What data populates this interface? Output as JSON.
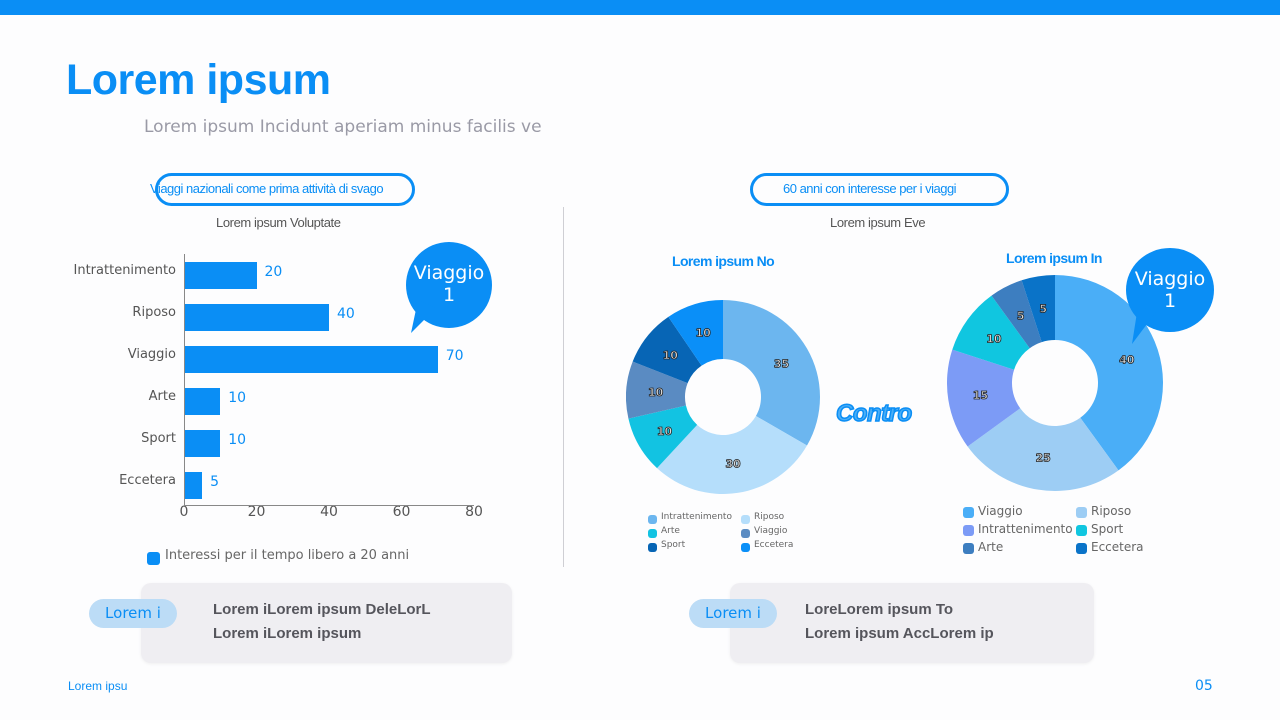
{
  "header": {
    "title": "Lorem ipsum",
    "subtitle": "Lorem ipsum Incidunt aperiam minus facilis ve"
  },
  "left_panel": {
    "pill_label": "Viaggi nazionali come prima attività di svago",
    "caption": "Lorem ipsum Voluptate",
    "bubble": {
      "line1": "Viaggio",
      "line2": "1"
    },
    "legend_label": "Interessi per il tempo libero a 20 anni",
    "card": {
      "tag": "Lorem i",
      "line1": "Lorem iLorem ipsum DeleLorL",
      "line2": "Lorem iLorem ipsum"
    }
  },
  "right_panel": {
    "pill_label": "60 anni con interesse per i viaggi",
    "caption": "Lorem ipsum Eve",
    "contro_label": "Contro",
    "bubble": {
      "line1": "Viaggio",
      "line2": "1"
    },
    "card": {
      "tag": "Lorem i",
      "line1": "LoreLorem ipsum To",
      "line2": "Lorem ipsum AccLorem ip"
    }
  },
  "footer": {
    "left_text": "Lorem ipsu",
    "page_number": "05"
  },
  "colors": {
    "accent": "#0a8ef5",
    "card_bg": "#efeef2",
    "tag_bg": "#bcdcf6"
  },
  "chart_data": [
    {
      "type": "bar",
      "orientation": "horizontal",
      "title": "Lorem ipsum Voluptate",
      "categories": [
        "Intrattenimento",
        "Riposo",
        "Viaggio",
        "Arte",
        "Sport",
        "Eccetera"
      ],
      "values": [
        20,
        40,
        70,
        10,
        10,
        5
      ],
      "series": [
        {
          "name": "Interessi per il tempo libero a 20 anni",
          "values": [
            20,
            40,
            70,
            10,
            10,
            5
          ],
          "color": "#0a8ef5"
        }
      ],
      "xticks": [
        "0",
        "20",
        "40",
        "60",
        "80"
      ],
      "xlim": [
        0,
        80
      ],
      "grid": false,
      "legend_position": "bottom",
      "annotation": "Viaggio 1"
    },
    {
      "type": "pie",
      "donut": true,
      "title": "Lorem ipsum No",
      "slices": [
        {
          "label": "Intrattenimento",
          "value": 35,
          "color": "#6cb6ef"
        },
        {
          "label": "Riposo",
          "value": 30,
          "color": "#b5defb"
        },
        {
          "label": "Arte",
          "value": 10,
          "color": "#12c3e2"
        },
        {
          "label": "Viaggio",
          "value": 10,
          "color": "#5a8bc2"
        },
        {
          "label": "Sport",
          "value": 10,
          "color": "#0765b5"
        },
        {
          "label": "Eccetera",
          "value": 10,
          "color": "#0a8ff8"
        }
      ],
      "legend_position": "bottom"
    },
    {
      "type": "pie",
      "donut": true,
      "title": "Lorem ipsum In",
      "slices": [
        {
          "label": "Viaggio",
          "value": 40,
          "color": "#4aaef7"
        },
        {
          "label": "Riposo",
          "value": 25,
          "color": "#9dcdf4"
        },
        {
          "label": "Intrattenimento",
          "value": 15,
          "color": "#7c9bf6"
        },
        {
          "label": "Sport",
          "value": 10,
          "color": "#10c6e0"
        },
        {
          "label": "Arte",
          "value": 5,
          "color": "#3d7ec0"
        },
        {
          "label": "Eccetera",
          "value": 5,
          "color": "#0a73c8"
        }
      ],
      "legend_position": "bottom",
      "annotation": "Viaggio 1"
    }
  ]
}
